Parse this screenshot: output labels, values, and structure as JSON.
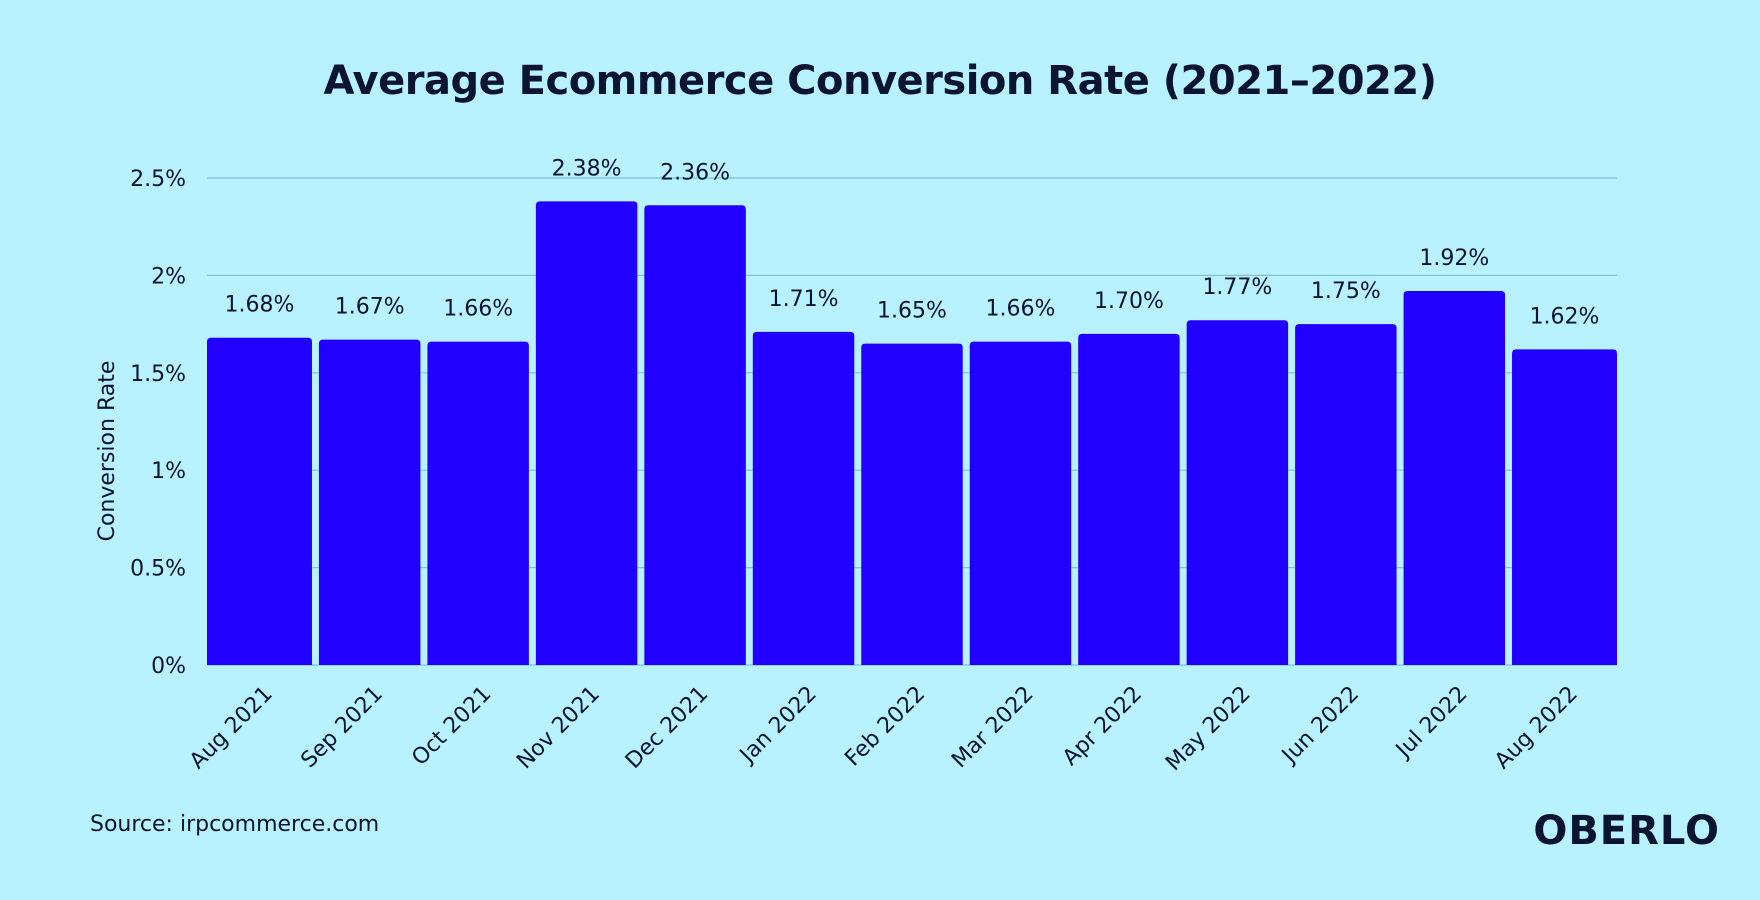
{
  "chart_data": {
    "type": "bar",
    "title": "Average Ecommerce Conversion Rate (2021–2022)",
    "ylabel": "Conversion Rate",
    "xlabel": "",
    "categories": [
      "Aug 2021",
      "Sep 2021",
      "Oct 2021",
      "Nov 2021",
      "Dec 2021",
      "Jan 2022",
      "Feb 2022",
      "Mar 2022",
      "Apr 2022",
      "May 2022",
      "Jun 2022",
      "Jul 2022",
      "Aug 2022"
    ],
    "values": [
      1.68,
      1.67,
      1.66,
      2.38,
      2.36,
      1.71,
      1.65,
      1.66,
      1.7,
      1.77,
      1.75,
      1.92,
      1.62
    ],
    "value_labels": [
      "1.68%",
      "1.67%",
      "1.66%",
      "2.38%",
      "2.36%",
      "1.71%",
      "1.65%",
      "1.66%",
      "1.70%",
      "1.77%",
      "1.75%",
      "1.92%",
      "1.62%"
    ],
    "ylim": [
      0,
      2.5
    ],
    "yticks": [
      0,
      0.5,
      1,
      1.5,
      2,
      2.5
    ],
    "ytick_labels": [
      "0%",
      "0.5%",
      "1%",
      "1.5%",
      "2%",
      "2.5%"
    ],
    "grid": true,
    "bar_color": "#2200ff",
    "grid_color": "#7fc3d6"
  },
  "footer": {
    "source": "Source: irpcommerce.com",
    "brand": "OBERLO"
  },
  "colors": {
    "background": "#b8f1ff",
    "text": "#0b1430"
  }
}
